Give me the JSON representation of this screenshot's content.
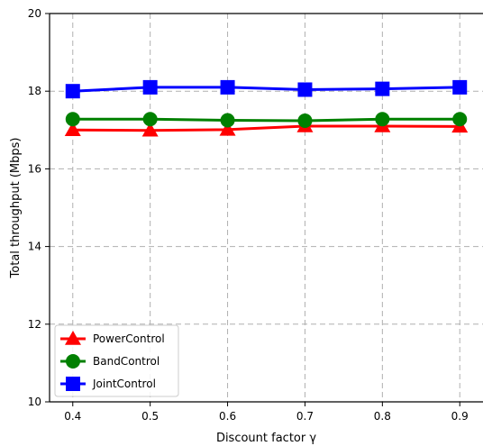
{
  "chart_data": {
    "type": "line",
    "title": "",
    "xlabel": "Discount factor γ",
    "ylabel": "Total throughput (Mbps)",
    "x": [
      0.4,
      0.5,
      0.6,
      0.7,
      0.8,
      0.9
    ],
    "xticks": [
      "0.4",
      "0.5",
      "0.6",
      "0.7",
      "0.8",
      "0.9"
    ],
    "xlim": [
      0.37,
      0.93
    ],
    "ylim": [
      10,
      20
    ],
    "yticks": [
      "10",
      "12",
      "14",
      "16",
      "18",
      "20"
    ],
    "grid": true,
    "legend_position": "bottom-left",
    "series": [
      {
        "name": "PowerControl",
        "color": "#ff0000",
        "marker": "triangle",
        "values": [
          17.0,
          16.99,
          17.01,
          17.1,
          17.1,
          17.09
        ]
      },
      {
        "name": "BandControl",
        "color": "#008000",
        "marker": "circle",
        "values": [
          17.28,
          17.28,
          17.25,
          17.24,
          17.28,
          17.28
        ]
      },
      {
        "name": "JointControl",
        "color": "#0000ff",
        "marker": "square",
        "values": [
          18.0,
          18.1,
          18.1,
          18.04,
          18.06,
          18.1
        ]
      }
    ]
  }
}
